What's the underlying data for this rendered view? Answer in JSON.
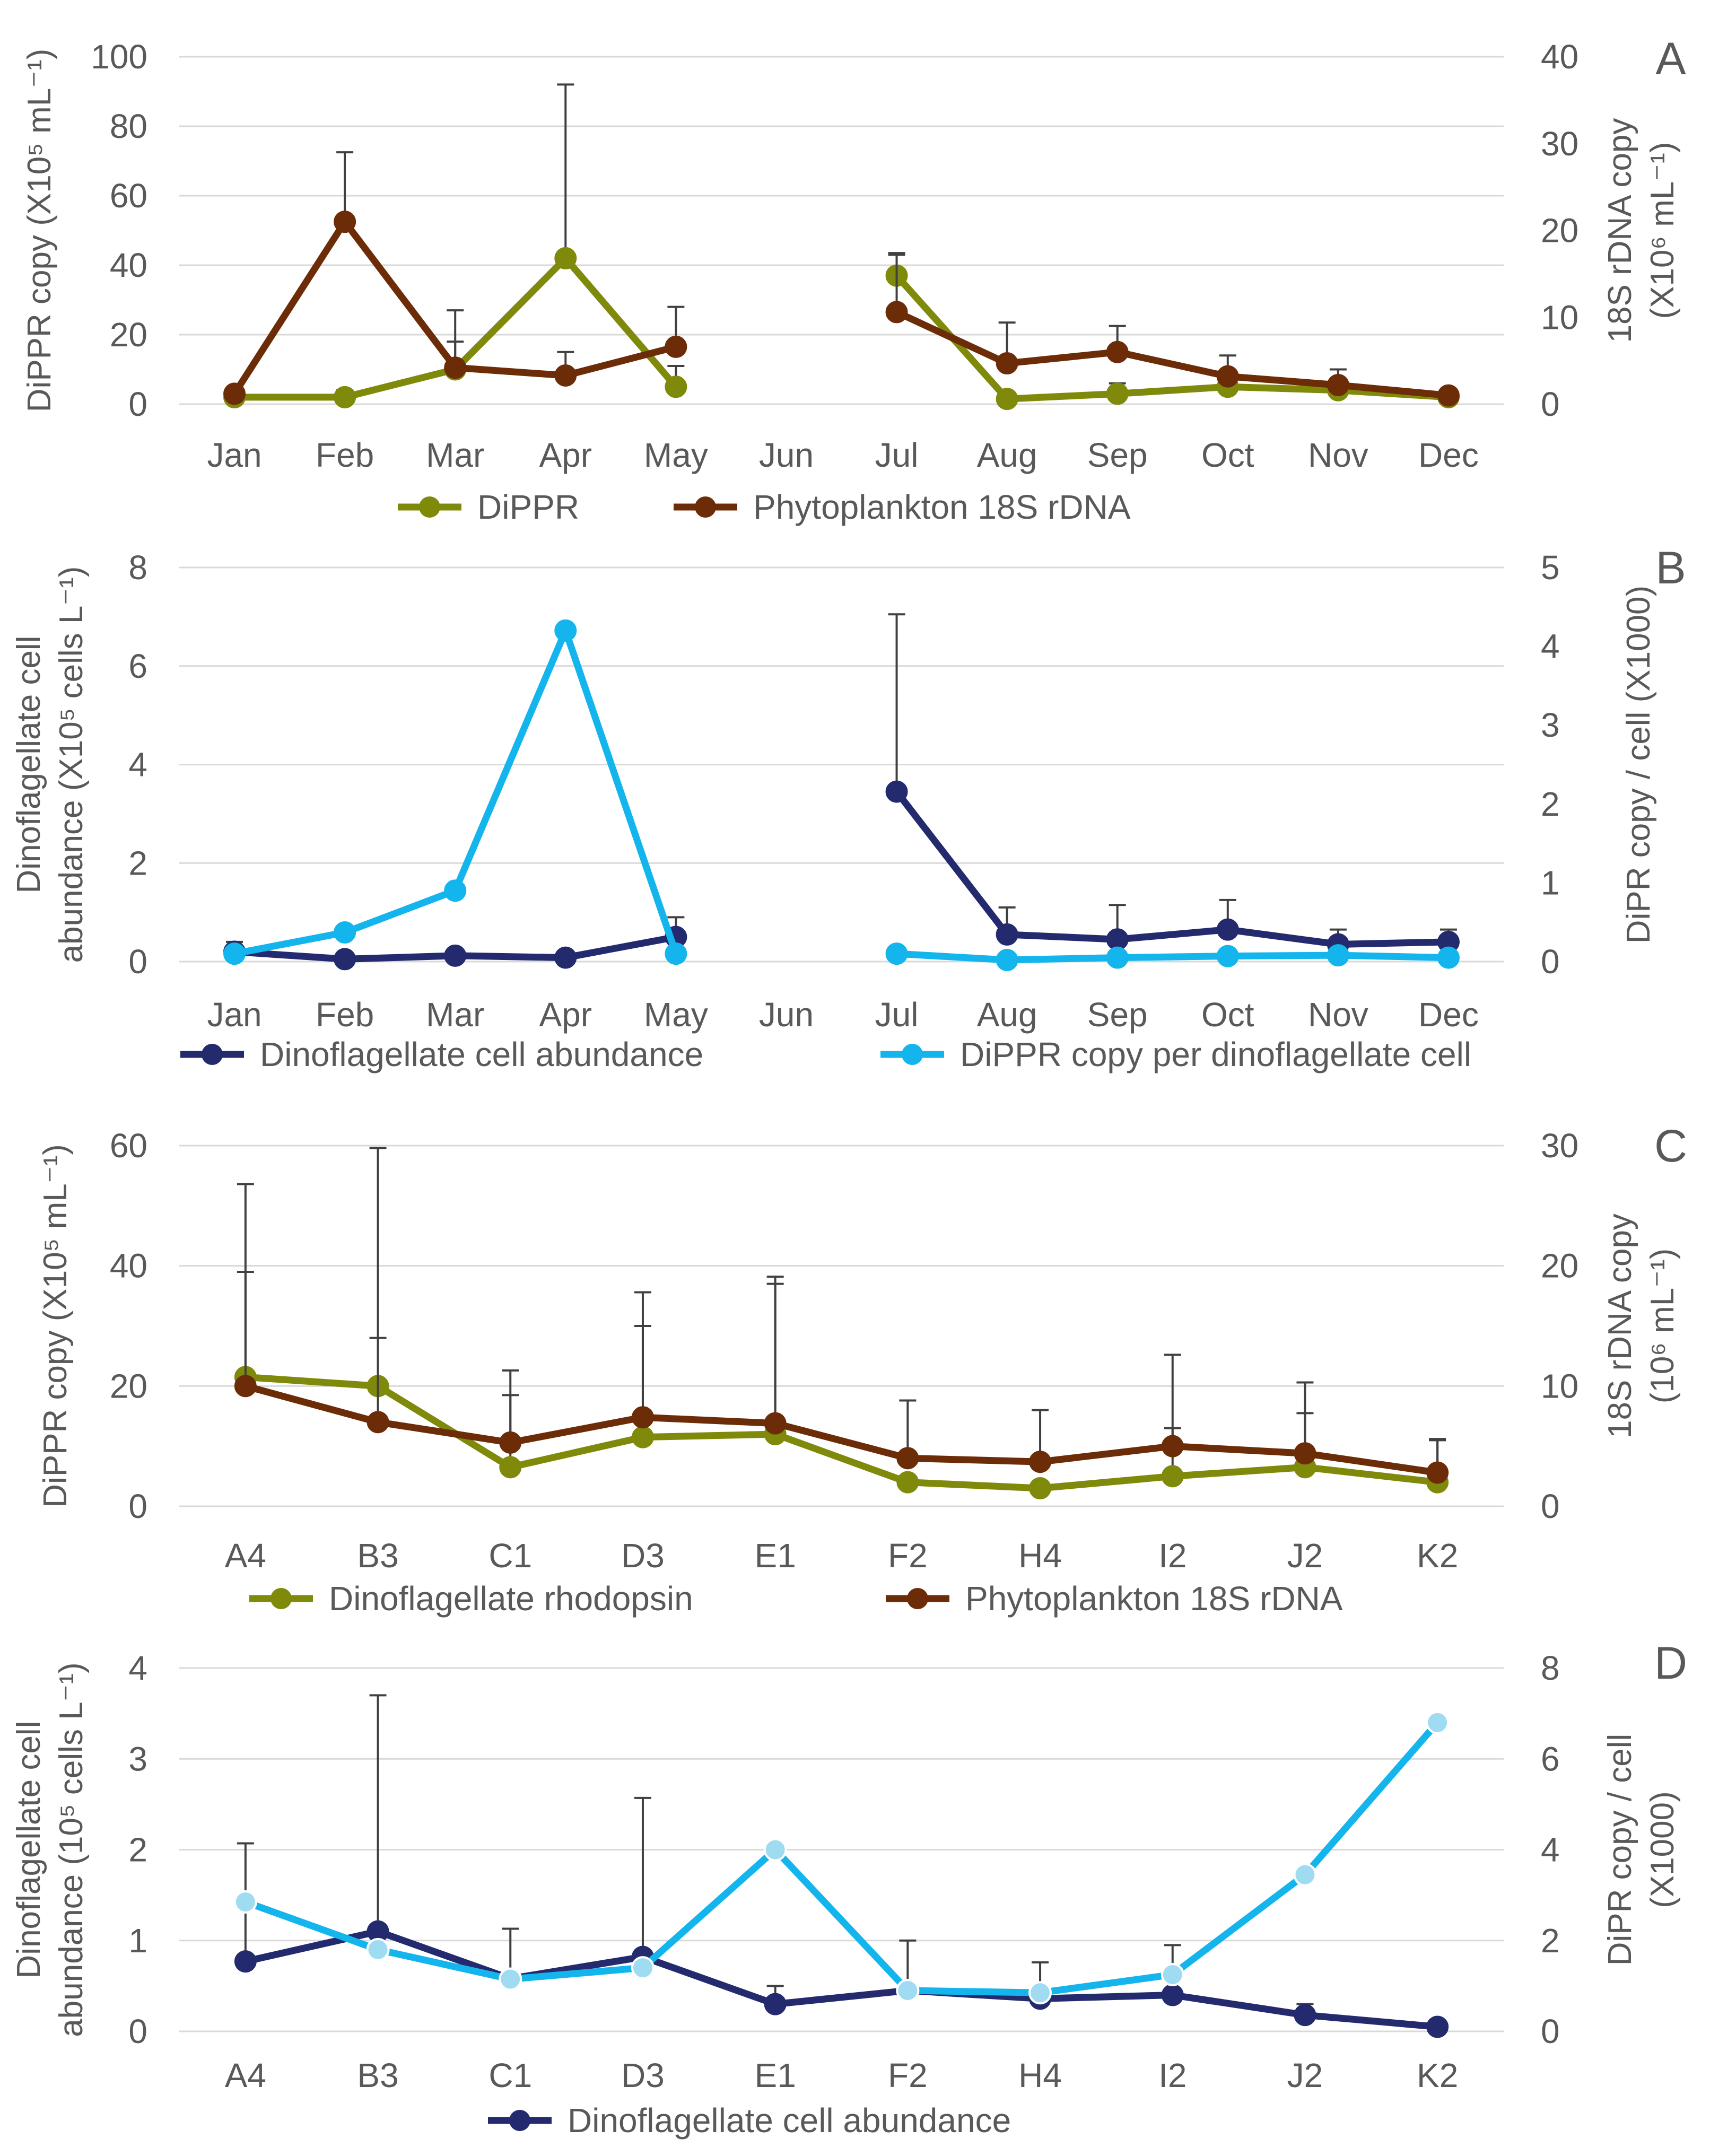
{
  "colors": {
    "olive": "#7f8a0a",
    "brown": "#6b2c07",
    "navy": "#232a6e",
    "cyan": "#13b5ec",
    "cyan_fill": "#9fdcf2",
    "grid": "#d9d9d9",
    "text": "#595959"
  },
  "chart_data": [
    {
      "id": "A",
      "type": "line",
      "panel_label": "A",
      "categories": [
        "Jan",
        "Feb",
        "Mar",
        "Apr",
        "May",
        "Jun",
        "Jul",
        "Aug",
        "Sep",
        "Oct",
        "Nov",
        "Dec"
      ],
      "ylabel_left": "DiPPR copy (X10⁵ mL⁻¹)",
      "ylabel_right": [
        "18S rDNA copy",
        "(X10⁶ mL⁻¹)"
      ],
      "ylim_left": [
        0,
        100
      ],
      "yticks_left": [
        "0",
        "20",
        "40",
        "60",
        "80",
        "100"
      ],
      "ylim_right": [
        0,
        40
      ],
      "yticks_right": [
        "0",
        "10",
        "20",
        "30",
        "40"
      ],
      "series": [
        {
          "name": "DiPPR",
          "axis": "left",
          "color": "olive",
          "marker": "filled",
          "values": [
            2,
            2,
            10,
            42,
            5,
            null,
            37,
            1.5,
            3,
            5,
            4,
            2
          ],
          "errors": [
            0,
            2,
            8,
            50,
            6,
            null,
            6,
            0,
            3,
            2,
            2,
            0
          ]
        },
        {
          "name": "Phytoplankton 18S rDNA",
          "axis": "right",
          "color": "brown",
          "marker": "filled",
          "values": [
            1.2,
            21,
            4.2,
            3.3,
            6.6,
            null,
            10.6,
            4.7,
            6,
            3.2,
            2.2,
            1
          ],
          "errors": [
            0,
            8,
            6.6,
            2.7,
            4.6,
            null,
            6.8,
            4.7,
            3,
            2.4,
            1.8,
            0
          ]
        }
      ],
      "legend": [
        "DiPPR",
        "Phytoplankton 18S rDNA"
      ]
    },
    {
      "id": "B",
      "type": "line",
      "panel_label": "B",
      "categories": [
        "Jan",
        "Feb",
        "Mar",
        "Apr",
        "May",
        "Jun",
        "Jul",
        "Aug",
        "Sep",
        "Oct",
        "Nov",
        "Dec"
      ],
      "ylabel_left": [
        "Dinoflagellate cell",
        "abundance (X10⁵ cells L⁻¹)"
      ],
      "ylabel_right": "DiPR copy / cell  (X1000)",
      "ylim_left": [
        0,
        8
      ],
      "yticks_left": [
        "0",
        "2",
        "4",
        "6",
        "8"
      ],
      "ylim_right": [
        0,
        5
      ],
      "yticks_right": [
        "0",
        "1",
        "2",
        "3",
        "4",
        "5"
      ],
      "series": [
        {
          "name": "Dinoflagellate cell abundance",
          "axis": "left",
          "color": "navy",
          "marker": "filled",
          "values": [
            0.2,
            0.05,
            0.12,
            0.08,
            0.5,
            null,
            3.45,
            0.55,
            0.45,
            0.65,
            0.35,
            0.4
          ],
          "errors": [
            0.2,
            0,
            0,
            0,
            0.4,
            null,
            3.6,
            0.55,
            0.7,
            0.6,
            0.3,
            0.25
          ]
        },
        {
          "name": "DiPPR copy per dinoflagellate cell",
          "axis": "right",
          "color": "cyan",
          "marker": "filled",
          "values": [
            0.1,
            0.37,
            0.9,
            4.2,
            0.1,
            null,
            0.1,
            0.02,
            0.05,
            0.07,
            0.08,
            0.05
          ],
          "errors": [
            0,
            0,
            0,
            0,
            0,
            null,
            0,
            0,
            0,
            0,
            0,
            0
          ]
        }
      ],
      "legend": [
        "Dinoflagellate cell abundance",
        "DiPPR copy per dinoflagellate cell"
      ]
    },
    {
      "id": "C",
      "type": "line",
      "panel_label": "C",
      "categories": [
        "A4",
        "B3",
        "C1",
        "D3",
        "E1",
        "F2",
        "H4",
        "I2",
        "J2",
        "K2"
      ],
      "ylabel_left": "DiPPR copy (X10⁵ mL⁻¹)",
      "ylabel_right": [
        "18S rDNA copy",
        "(10⁶ mL⁻¹)"
      ],
      "ylim_left": [
        0,
        60
      ],
      "yticks_left": [
        "0",
        "20",
        "40",
        "60"
      ],
      "ylim_right": [
        0,
        30
      ],
      "yticks_right": [
        "0",
        "10",
        "20",
        "30"
      ],
      "series": [
        {
          "name": "Dinoflagellate rhodopsin",
          "axis": "left",
          "color": "olive",
          "marker": "filled",
          "values": [
            21.5,
            20,
            6.5,
            11.5,
            12,
            4,
            3,
            5,
            6.5,
            4
          ],
          "errors": [
            17.5,
            8,
            12,
            18.5,
            25,
            0,
            0,
            8,
            9,
            7
          ]
        },
        {
          "name": "Phytoplankton 18S rDNA",
          "axis": "right",
          "color": "brown",
          "marker": "filled",
          "values": [
            10,
            7,
            5.3,
            7.4,
            6.9,
            4,
            3.7,
            5,
            4.4,
            2.8
          ],
          "errors": [
            16.8,
            22.8,
            6,
            10.4,
            12.2,
            4.8,
            4.3,
            7.6,
            5.9,
            2.8
          ]
        }
      ],
      "legend": [
        "Dinoflagellate rhodopsin",
        "Phytoplankton 18S rDNA"
      ]
    },
    {
      "id": "D",
      "type": "line",
      "panel_label": "D",
      "categories": [
        "A4",
        "B3",
        "C1",
        "D3",
        "E1",
        "F2",
        "H4",
        "I2",
        "J2",
        "K2"
      ],
      "ylabel_left": [
        "Dinoflagellate cell",
        "abundance (10⁵ cells L⁻¹)"
      ],
      "ylabel_right": [
        "DiPR copy / cell",
        "(X1000)"
      ],
      "ylim_left": [
        0,
        4
      ],
      "yticks_left": [
        "0",
        "1",
        "2",
        "3",
        "4"
      ],
      "ylim_right": [
        0,
        8
      ],
      "yticks_right": [
        "0",
        "2",
        "4",
        "6",
        "8"
      ],
      "series": [
        {
          "name": "Dinoflagellate cell abundance",
          "axis": "left",
          "color": "navy",
          "marker": "filled",
          "values": [
            0.77,
            1.1,
            0.58,
            0.82,
            0.3,
            0.45,
            0.36,
            0.4,
            0.18,
            0.05
          ],
          "errors": [
            1.3,
            2.6,
            0.55,
            1.75,
            0.2,
            0.55,
            0.4,
            0.55,
            0.12,
            0
          ]
        },
        {
          "name": "DiPR copy per cell",
          "axis": "right",
          "color": "cyan",
          "marker": "hollow",
          "values": [
            2.85,
            1.8,
            1.15,
            1.4,
            4.0,
            0.9,
            0.85,
            1.25,
            3.45,
            6.8
          ],
          "errors": [
            0,
            0,
            0,
            0,
            0,
            0,
            0,
            0,
            0,
            0
          ]
        }
      ],
      "legend": [
        "Dinoflagellate cell abundance"
      ]
    }
  ]
}
